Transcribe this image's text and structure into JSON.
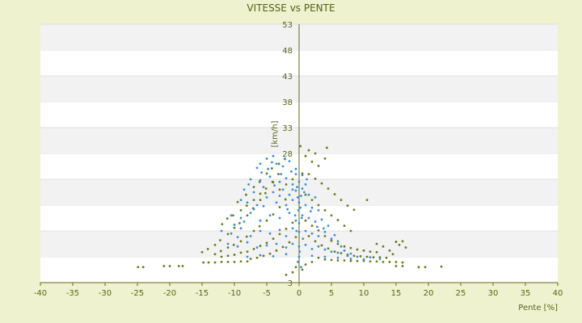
{
  "chart_data": {
    "type": "scatter",
    "title": "VITESSE vs PENTE",
    "xlabel": "Pente [%]",
    "ylabel": "[km/h]",
    "xlim": [
      -40,
      40
    ],
    "ylim": [
      3,
      53
    ],
    "x_ticks": [
      -40,
      -35,
      -30,
      -25,
      -20,
      -15,
      -10,
      -5,
      0,
      5,
      10,
      15,
      20,
      25,
      30,
      35,
      40
    ],
    "y_ticks": [
      3,
      8,
      13,
      18,
      23,
      28,
      33,
      38,
      43,
      48,
      53
    ],
    "y_tick_labels": [
      "3",
      "",
      "",
      "",
      "",
      "28",
      "33",
      "38",
      "43",
      "48",
      "53"
    ],
    "grid": "horizontal bands",
    "series": [
      {
        "color": "#6b7a1a",
        "points": [
          [
            -24.9,
            6.0
          ],
          [
            -24.1,
            6.0
          ],
          [
            -20.9,
            6.2
          ],
          [
            -20.0,
            6.2
          ],
          [
            -18.6,
            6.2
          ],
          [
            -18.0,
            6.2
          ],
          [
            -14.8,
            6.9
          ],
          [
            -14.0,
            6.9
          ],
          [
            -13.0,
            6.9
          ],
          [
            -12.0,
            7.0
          ],
          [
            -11.0,
            7.0
          ],
          [
            -10.0,
            7.0
          ],
          [
            -9.0,
            7.1
          ],
          [
            -8.0,
            7.1
          ],
          [
            -15.0,
            8.9
          ],
          [
            -14.1,
            9.5
          ],
          [
            -13.0,
            10.3
          ],
          [
            -12.2,
            11.2
          ],
          [
            -11.0,
            12.4
          ],
          [
            -10.0,
            13.6
          ],
          [
            -9.2,
            14.5
          ],
          [
            -8.0,
            16.0
          ],
          [
            -7.1,
            17.4
          ],
          [
            -6.0,
            19.0
          ],
          [
            -5.2,
            20.3
          ],
          [
            -4.1,
            22.5
          ],
          [
            -3.2,
            24.0
          ],
          [
            -13.0,
            8.5
          ],
          [
            -12.1,
            9.1
          ],
          [
            -11.0,
            9.8
          ],
          [
            -10.1,
            10.3
          ],
          [
            -9.0,
            11.0
          ],
          [
            -8.1,
            11.9
          ],
          [
            -7.0,
            13.0
          ],
          [
            -6.1,
            13.9
          ],
          [
            -5.0,
            15.0
          ],
          [
            -4.0,
            16.2
          ],
          [
            -3.0,
            17.6
          ],
          [
            -2.1,
            19.1
          ],
          [
            -11.9,
            14.3
          ],
          [
            -11.1,
            15.4
          ],
          [
            -10.2,
            16.0
          ],
          [
            -9.0,
            17.0
          ],
          [
            -8.1,
            17.9
          ],
          [
            -7.0,
            19.0
          ],
          [
            -6.0,
            20.2
          ],
          [
            -5.1,
            21.2
          ],
          [
            -4.0,
            22.4
          ],
          [
            -9.5,
            18.6
          ],
          [
            -8.2,
            20.0
          ],
          [
            -7.0,
            21.5
          ],
          [
            -6.1,
            22.5
          ],
          [
            -5.0,
            24.1
          ],
          [
            -4.2,
            25.1
          ],
          [
            -3.1,
            26.0
          ],
          [
            -2.2,
            26.9
          ],
          [
            -12.0,
            8.0
          ],
          [
            -11.0,
            8.2
          ],
          [
            -10.0,
            8.4
          ],
          [
            -9.0,
            8.8
          ],
          [
            -8.0,
            9.0
          ],
          [
            -7.0,
            9.5
          ],
          [
            -6.0,
            10.1
          ],
          [
            -5.0,
            10.7
          ],
          [
            -4.0,
            11.5
          ],
          [
            -3.0,
            12.4
          ],
          [
            -2.0,
            13.4
          ],
          [
            -1.0,
            14.6
          ],
          [
            -7.5,
            7.6
          ],
          [
            -6.5,
            7.8
          ],
          [
            -5.5,
            8.2
          ],
          [
            -4.5,
            8.6
          ],
          [
            -3.5,
            9.2
          ],
          [
            -2.5,
            9.9
          ],
          [
            -1.5,
            10.8
          ],
          [
            -0.5,
            11.8
          ],
          [
            -3.0,
            21.0
          ],
          [
            -2.0,
            22.0
          ],
          [
            -1.0,
            23.0
          ],
          [
            0.5,
            24.1
          ],
          [
            1.5,
            24.0
          ],
          [
            2.5,
            23.1
          ],
          [
            3.5,
            22.2
          ],
          [
            4.5,
            21.2
          ],
          [
            5.5,
            20.1
          ],
          [
            6.5,
            19.0
          ],
          [
            7.5,
            17.9
          ],
          [
            8.5,
            17.1
          ],
          [
            10.5,
            19.0
          ],
          [
            0.2,
            29.4
          ],
          [
            1.0,
            27.5
          ],
          [
            2.0,
            26.4
          ],
          [
            3.0,
            25.6
          ],
          [
            4.0,
            27.0
          ],
          [
            4.3,
            29.1
          ],
          [
            2.5,
            28.0
          ],
          [
            1.5,
            28.6
          ],
          [
            1.0,
            20.0
          ],
          [
            2.0,
            19.0
          ],
          [
            3.0,
            18.0
          ],
          [
            4.0,
            17.0
          ],
          [
            5.0,
            16.0
          ],
          [
            6.0,
            15.1
          ],
          [
            7.0,
            14.0
          ],
          [
            8.0,
            13.0
          ],
          [
            1.0,
            15.0
          ],
          [
            2.0,
            14.0
          ],
          [
            3.0,
            13.1
          ],
          [
            4.0,
            12.0
          ],
          [
            5.0,
            11.1
          ],
          [
            6.0,
            10.5
          ],
          [
            7.0,
            10.0
          ],
          [
            8.0,
            9.7
          ],
          [
            9.0,
            9.4
          ],
          [
            10.0,
            9.2
          ],
          [
            11.0,
            9.0
          ],
          [
            12.0,
            8.9
          ],
          [
            1.5,
            12.0
          ],
          [
            2.5,
            11.0
          ],
          [
            3.5,
            10.2
          ],
          [
            4.5,
            9.6
          ],
          [
            5.5,
            9.0
          ],
          [
            6.5,
            8.7
          ],
          [
            7.5,
            8.4
          ],
          [
            8.5,
            8.2
          ],
          [
            9.5,
            8.1
          ],
          [
            10.5,
            8.0
          ],
          [
            11.5,
            7.9
          ],
          [
            12.5,
            7.9
          ],
          [
            13.5,
            7.8
          ],
          [
            4.0,
            7.5
          ],
          [
            5.0,
            7.4
          ],
          [
            6.0,
            7.3
          ],
          [
            7.0,
            7.3
          ],
          [
            8.0,
            7.2
          ],
          [
            9.0,
            7.2
          ],
          [
            10.0,
            7.2
          ],
          [
            11.0,
            7.1
          ],
          [
            12.0,
            7.1
          ],
          [
            13.0,
            7.0
          ],
          [
            14.0,
            7.0
          ],
          [
            15.0,
            7.0
          ],
          [
            16.0,
            6.9
          ],
          [
            12.0,
            10.5
          ],
          [
            13.0,
            10.0
          ],
          [
            14.0,
            9.2
          ],
          [
            15.0,
            10.9
          ],
          [
            15.5,
            10.3
          ],
          [
            16.0,
            11.0
          ],
          [
            16.5,
            9.8
          ],
          [
            14.5,
            8.5
          ],
          [
            15.0,
            6.2
          ],
          [
            16.0,
            6.2
          ],
          [
            18.5,
            6.0
          ],
          [
            19.5,
            6.0
          ],
          [
            22.0,
            6.1
          ],
          [
            -2.0,
            4.5
          ],
          [
            -1.0,
            5.0
          ],
          [
            -0.5,
            6.0
          ],
          [
            0.5,
            5.5
          ],
          [
            1.0,
            6.5
          ],
          [
            2.0,
            7.0
          ],
          [
            3.0,
            7.8
          ]
        ]
      },
      {
        "color": "#3a8fd9",
        "points": [
          [
            -6.5,
            25.2
          ],
          [
            -5.0,
            27.0
          ],
          [
            -4.0,
            27.5
          ],
          [
            -3.5,
            26.0
          ],
          [
            -2.5,
            25.5
          ],
          [
            -1.5,
            26.5
          ],
          [
            -0.5,
            25.0
          ],
          [
            0.5,
            23.8
          ],
          [
            -7.5,
            23.0
          ],
          [
            -6.0,
            22.8
          ],
          [
            -4.5,
            23.5
          ],
          [
            -3.0,
            22.5
          ],
          [
            -2.0,
            23.2
          ],
          [
            -1.0,
            22.0
          ],
          [
            0.0,
            22.5
          ],
          [
            1.0,
            22.0
          ],
          [
            -8.5,
            21.0
          ],
          [
            -7.0,
            20.5
          ],
          [
            -5.5,
            21.5
          ],
          [
            -4.0,
            20.5
          ],
          [
            -2.5,
            21.0
          ],
          [
            -1.5,
            20.0
          ],
          [
            -0.5,
            20.8
          ],
          [
            0.5,
            21.2
          ],
          [
            1.5,
            20.0
          ],
          [
            2.5,
            19.5
          ],
          [
            -9.0,
            19.0
          ],
          [
            -8.0,
            18.5
          ],
          [
            -6.5,
            18.0
          ],
          [
            -5.0,
            19.5
          ],
          [
            -3.5,
            18.5
          ],
          [
            -2.0,
            18.0
          ],
          [
            -1.0,
            19.0
          ],
          [
            0.0,
            18.5
          ],
          [
            1.0,
            18.0
          ],
          [
            2.0,
            17.5
          ],
          [
            3.0,
            17.0
          ],
          [
            -10.5,
            16.0
          ],
          [
            -9.0,
            15.5
          ],
          [
            -7.5,
            16.5
          ],
          [
            -6.0,
            15.0
          ],
          [
            -4.5,
            16.0
          ],
          [
            -3.0,
            15.5
          ],
          [
            -1.5,
            16.5
          ],
          [
            -0.5,
            15.0
          ],
          [
            0.5,
            16.0
          ],
          [
            1.5,
            15.5
          ],
          [
            2.5,
            14.8
          ],
          [
            3.5,
            15.2
          ],
          [
            4.5,
            14.0
          ],
          [
            -12.0,
            13.0
          ],
          [
            -10.5,
            12.5
          ],
          [
            -9.0,
            13.5
          ],
          [
            -7.5,
            12.0
          ],
          [
            -6.0,
            13.0
          ],
          [
            -4.5,
            12.5
          ],
          [
            -3.0,
            13.2
          ],
          [
            -2.0,
            12.0
          ],
          [
            -1.0,
            13.5
          ],
          [
            0.0,
            12.8
          ],
          [
            1.0,
            13.0
          ],
          [
            2.0,
            12.5
          ],
          [
            3.0,
            12.0
          ],
          [
            4.0,
            12.8
          ],
          [
            5.0,
            11.5
          ],
          [
            6.0,
            11.0
          ],
          [
            -11.0,
            10.5
          ],
          [
            -9.5,
            10.0
          ],
          [
            -8.0,
            10.8
          ],
          [
            -6.5,
            9.8
          ],
          [
            -5.0,
            10.2
          ],
          [
            -3.5,
            10.5
          ],
          [
            -2.0,
            9.8
          ],
          [
            -1.0,
            10.5
          ],
          [
            0.0,
            10.0
          ],
          [
            1.0,
            10.3
          ],
          [
            2.0,
            9.5
          ],
          [
            3.0,
            10.0
          ],
          [
            4.0,
            9.4
          ],
          [
            5.0,
            9.0
          ],
          [
            6.0,
            8.8
          ],
          [
            7.0,
            9.2
          ],
          [
            8.0,
            8.6
          ],
          [
            -8.0,
            8.0
          ],
          [
            -6.0,
            8.3
          ],
          [
            -4.0,
            8.1
          ],
          [
            -2.0,
            8.5
          ],
          [
            0.0,
            8.0
          ],
          [
            2.0,
            8.2
          ],
          [
            4.0,
            8.0
          ],
          [
            6.0,
            7.8
          ],
          [
            8.0,
            7.6
          ],
          [
            10.0,
            7.5
          ],
          [
            11.0,
            7.9
          ],
          [
            12.5,
            7.6
          ],
          [
            -0.5,
            24.0
          ],
          [
            -0.3,
            21.5
          ],
          [
            -0.2,
            19.5
          ],
          [
            -0.1,
            17.0
          ],
          [
            0.0,
            14.5
          ],
          [
            0.2,
            17.5
          ],
          [
            0.3,
            19.8
          ],
          [
            0.4,
            15.5
          ],
          [
            -0.4,
            13.0
          ],
          [
            -0.6,
            16.0
          ],
          [
            0.6,
            11.5
          ],
          [
            0.1,
            9.0
          ],
          [
            -0.2,
            7.0
          ],
          [
            0.3,
            6.0
          ],
          [
            -1.2,
            24.5
          ],
          [
            -2.8,
            24.0
          ],
          [
            -4.8,
            25.0
          ],
          [
            -5.8,
            24.3
          ],
          [
            -7.8,
            22.0
          ],
          [
            -3.8,
            21.8
          ],
          [
            -1.8,
            17.2
          ],
          [
            1.8,
            16.8
          ],
          [
            2.8,
            13.8
          ],
          [
            3.8,
            13.5
          ],
          [
            5.5,
            12.2
          ],
          [
            6.5,
            10.0
          ],
          [
            7.5,
            8.2
          ],
          [
            9.0,
            8.0
          ],
          [
            -9.5,
            11.8
          ],
          [
            -10.0,
            14.2
          ],
          [
            -8.5,
            14.8
          ],
          [
            -7.0,
            17.2
          ],
          [
            -5.5,
            17.8
          ],
          [
            -3.0,
            19.8
          ],
          [
            -1.0,
            21.0
          ],
          [
            0.8,
            20.5
          ],
          [
            1.2,
            23.0
          ],
          [
            -6.0,
            26.0
          ],
          [
            -4.2,
            26.3
          ],
          [
            -2.2,
            27.0
          ]
        ]
      }
    ]
  }
}
